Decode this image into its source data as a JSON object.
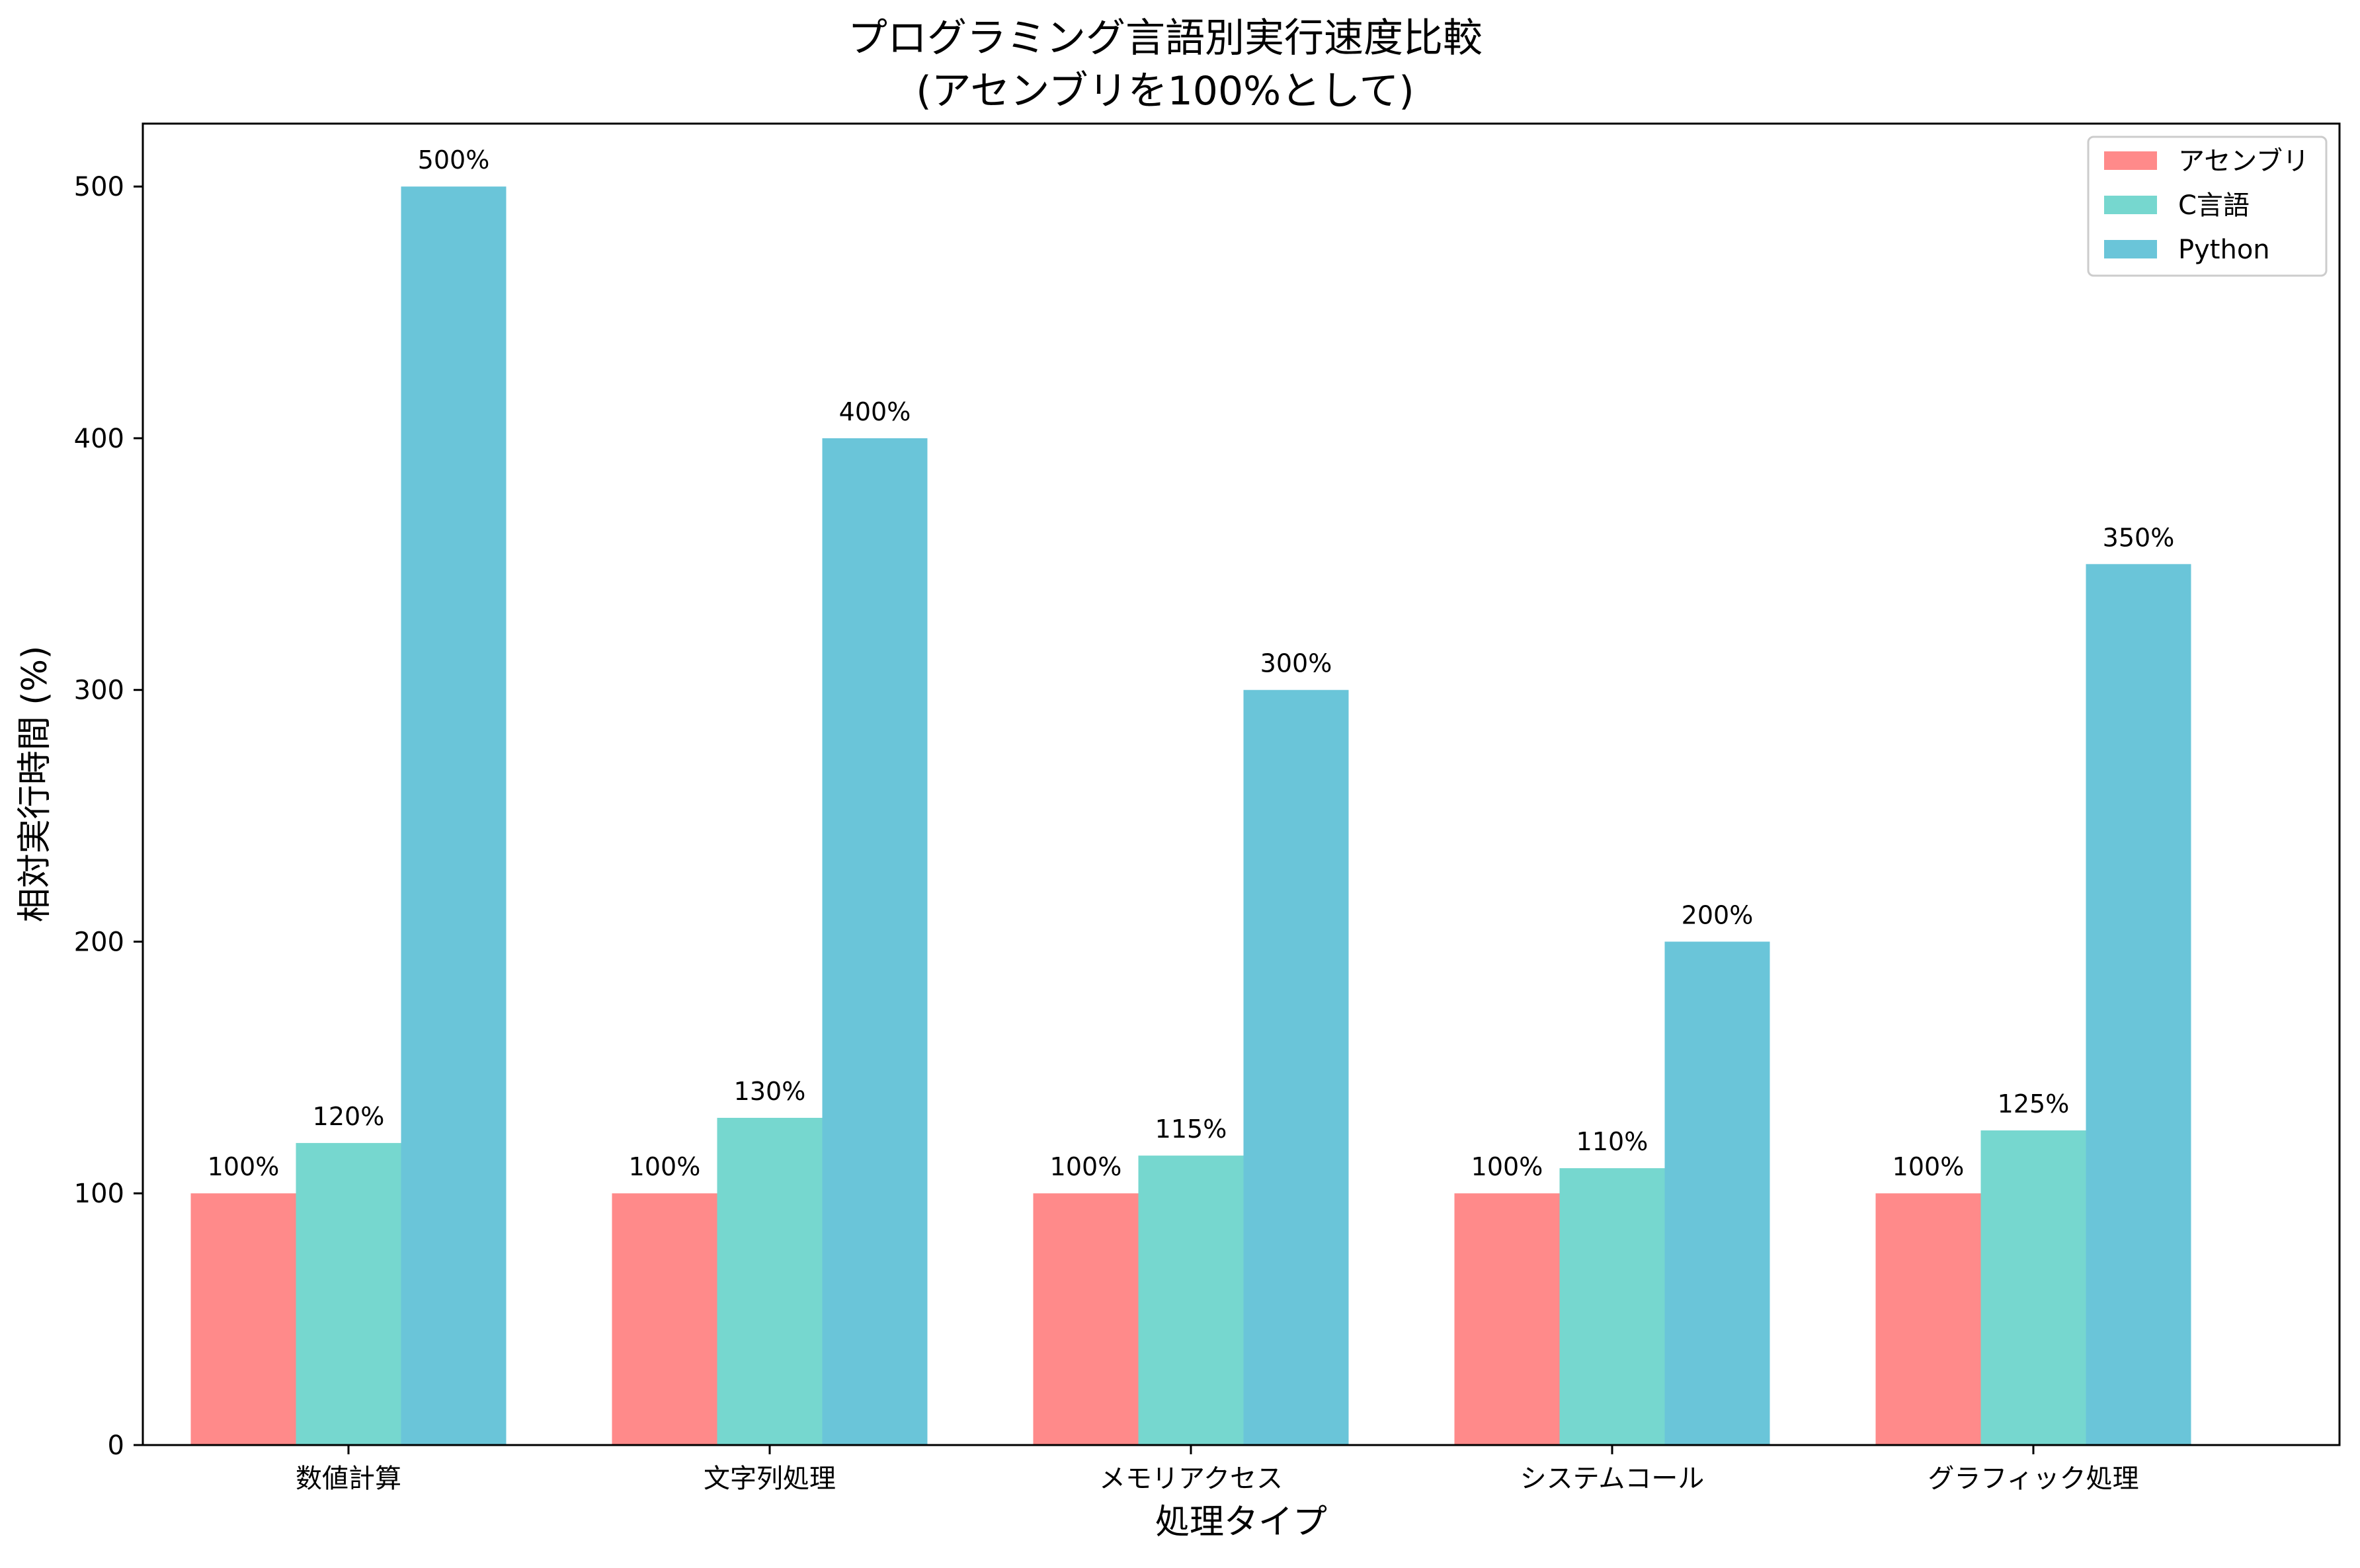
{
  "chart_data": {
    "type": "bar",
    "title_line1": "プログラミング言語別実行速度比較",
    "title_line2": "(アセンブリを100%として)",
    "xlabel": "処理タイプ",
    "ylabel": "相対実行時間 (%)",
    "categories": [
      "数値計算",
      "文字列処理",
      "メモリアクセス",
      "システムコール",
      "グラフィック処理"
    ],
    "series": [
      {
        "name": "アセンブリ",
        "color": "#FF8A8A",
        "values": [
          100,
          100,
          100,
          100,
          100
        ],
        "labels": [
          "100%",
          "100%",
          "100%",
          "100%",
          "100%"
        ]
      },
      {
        "name": "C言語",
        "color": "#76D7CF",
        "values": [
          120,
          130,
          115,
          110,
          125
        ],
        "labels": [
          "120%",
          "130%",
          "115%",
          "110%",
          "125%"
        ]
      },
      {
        "name": "Python",
        "color": "#6AC5D9",
        "values": [
          500,
          400,
          300,
          200,
          350
        ],
        "labels": [
          "500%",
          "400%",
          "300%",
          "200%",
          "350%"
        ]
      }
    ],
    "ylim": [
      0,
      525
    ],
    "yticks": [
      0,
      100,
      200,
      300,
      400,
      500
    ],
    "ytick_labels": [
      "0",
      "100",
      "200",
      "300",
      "400",
      "500"
    ],
    "grid": false,
    "legend_position": "top-right"
  }
}
